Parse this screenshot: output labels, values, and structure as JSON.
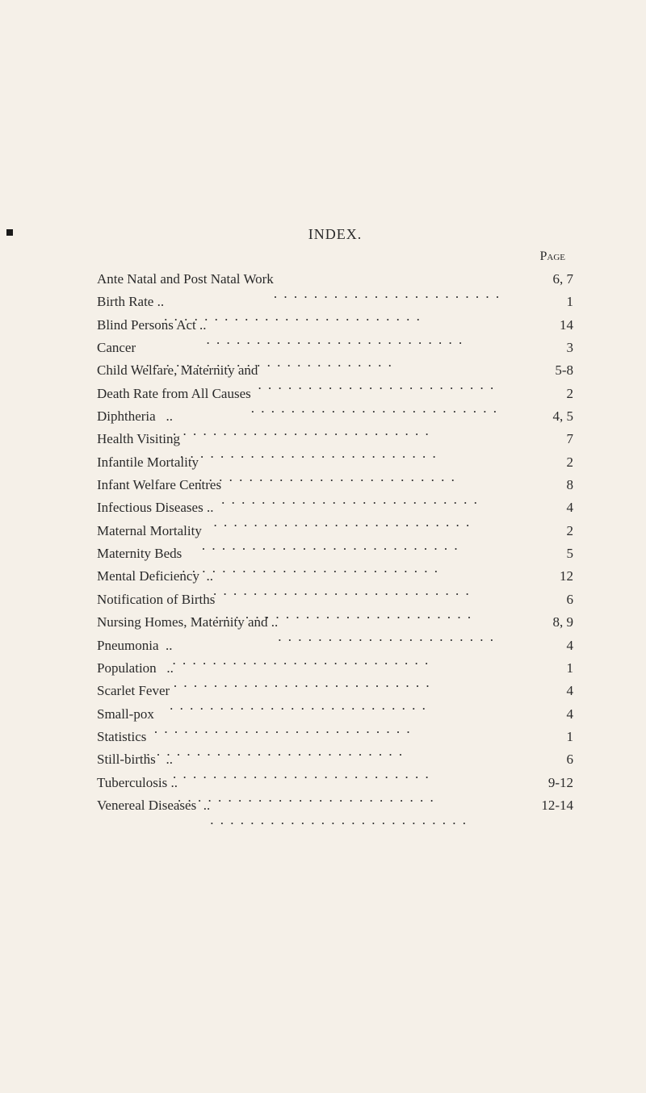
{
  "title": "INDEX.",
  "page_header_label": "Page",
  "colors": {
    "background": "#f5f0e8",
    "text": "#2a2a2a"
  },
  "typography": {
    "font_family": "Times New Roman",
    "body_fontsize": 17,
    "title_fontsize": 18
  },
  "entries": [
    {
      "label": "Ante Natal and Post Natal Work",
      "page": "6, 7"
    },
    {
      "label": "Birth Rate ..",
      "page": "1"
    },
    {
      "label": "Blind Persons Act ..",
      "page": "14"
    },
    {
      "label": "Cancer",
      "page": "3"
    },
    {
      "label": "Child Welfare, Maternity and",
      "page": "5-8"
    },
    {
      "label": "Death Rate from All Causes",
      "page": "2"
    },
    {
      "label": "Diphtheria   ..",
      "page": "4, 5"
    },
    {
      "label": "Health Visiting",
      "page": "7"
    },
    {
      "label": "Infantile Mortality",
      "page": "2"
    },
    {
      "label": "Infant Welfare Centres",
      "page": "8"
    },
    {
      "label": "Infectious Diseases ..",
      "page": "4"
    },
    {
      "label": "Maternal Mortality",
      "page": "2"
    },
    {
      "label": "Maternity Beds",
      "page": "5"
    },
    {
      "label": "Mental Deficiency  ..",
      "page": "12"
    },
    {
      "label": "Notification of Births",
      "page": "6"
    },
    {
      "label": "Nursing Homes, Maternity and ..",
      "page": "8, 9"
    },
    {
      "label": "Pneumonia  ..",
      "page": "4"
    },
    {
      "label": "Population   ..",
      "page": "1"
    },
    {
      "label": "Scarlet Fever",
      "page": "4"
    },
    {
      "label": "Small-pox",
      "page": "4"
    },
    {
      "label": "Statistics",
      "page": "1"
    },
    {
      "label": "Still-births   ..",
      "page": "6"
    },
    {
      "label": "Tuberculosis ..",
      "page": "9-12"
    },
    {
      "label": "Venereal Diseases  ..",
      "page": "12-14"
    }
  ]
}
